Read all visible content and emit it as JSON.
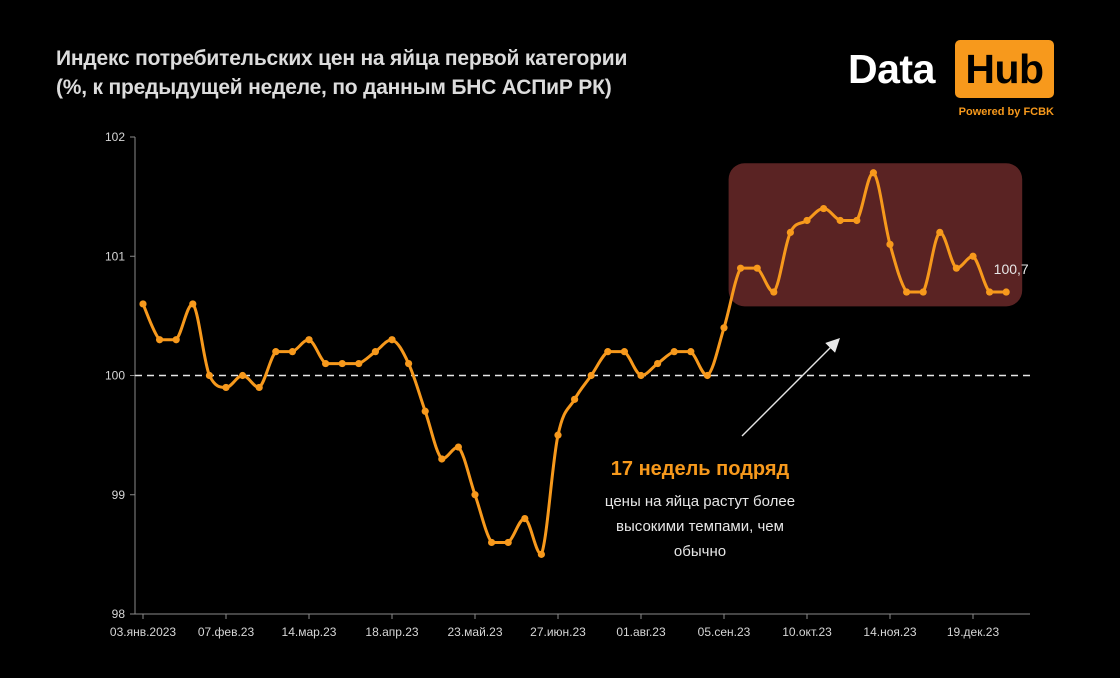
{
  "header": {
    "title_line1": "Индекс потребительских цен на яйца первой категории",
    "title_line2": "(%, к предыдущей неделе, по данным БНС АСПиР РК)"
  },
  "logo": {
    "word1": "Data",
    "word2": "Hub",
    "powered": "Powered by FCBK"
  },
  "colors": {
    "line": "#f7991c",
    "highlight": "#5a2323",
    "baseline": "#e6e6e6",
    "axis": "#8a8a8a"
  },
  "chart_data": {
    "type": "line",
    "title": "Индекс потребительских цен на яйца первой категории",
    "subtitle": "(%, к предыдущей неделе, по данным БНС АСПиР РК)",
    "xlabel": "",
    "ylabel": "",
    "ylim": [
      98,
      102
    ],
    "yticks": [
      98,
      99,
      100,
      101,
      102
    ],
    "xtick_labels": [
      "03.янв.2023",
      "07.фев.23",
      "14.мар.23",
      "18.апр.23",
      "23.май.23",
      "27.июн.23",
      "01.авг.23",
      "05.сен.23",
      "10.окт.23",
      "14.ноя.23",
      "19.дек.23"
    ],
    "xtick_week_index": [
      0,
      5,
      10,
      15,
      20,
      25,
      30,
      35,
      40,
      45,
      50
    ],
    "baseline_value": 100,
    "grid": false,
    "series": [
      {
        "values": [
          100.6,
          100.3,
          100.3,
          100.6,
          100.0,
          99.9,
          100.0,
          99.9,
          100.2,
          100.2,
          100.3,
          100.1,
          100.1,
          100.1,
          100.2,
          100.3,
          100.1,
          99.7,
          99.3,
          99.4,
          99.0,
          98.6,
          98.6,
          98.8,
          98.5,
          99.5,
          99.8,
          100.0,
          100.2,
          100.2,
          100.0,
          100.1,
          100.2,
          100.2,
          100.0,
          100.4,
          100.9,
          100.9,
          100.7,
          101.2,
          101.3,
          101.4,
          101.3,
          101.3,
          101.7,
          101.1,
          100.7,
          100.7,
          101.2,
          100.9,
          101.0,
          100.7,
          100.7
        ]
      }
    ],
    "highlight_range": {
      "from_week": 36,
      "to_week": 52,
      "ymin": 100.58,
      "ymax": 101.78
    },
    "last_value_label": "100,7",
    "annotation": {
      "headline": "17 недель подряд",
      "lines": [
        "цены на яйца растут более",
        "высокими темпами, чем",
        "обычно"
      ]
    }
  }
}
